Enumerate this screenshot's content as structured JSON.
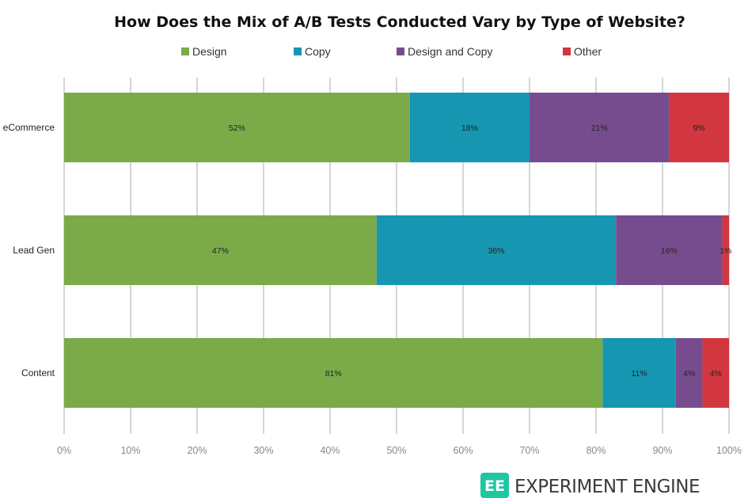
{
  "chart_data": {
    "type": "bar",
    "orientation": "horizontal",
    "stacked": "percent",
    "title": "How Does the Mix of A/B Tests Conducted Vary by Type of Website?",
    "categories": [
      "eCommerce",
      "Lead Gen",
      "Content"
    ],
    "series": [
      {
        "name": "Design",
        "color": "#7aab48",
        "values": [
          52,
          47,
          81
        ]
      },
      {
        "name": "Copy",
        "color": "#1696b1",
        "values": [
          18,
          36,
          11
        ]
      },
      {
        "name": "Design and Copy",
        "color": "#774c8e",
        "values": [
          21,
          16,
          4
        ]
      },
      {
        "name": "Other",
        "color": "#d2363f",
        "values": [
          9,
          1,
          4
        ]
      }
    ],
    "xlim": [
      0,
      100
    ],
    "xticks": [
      "0%",
      "10%",
      "20%",
      "30%",
      "40%",
      "50%",
      "60%",
      "70%",
      "80%",
      "90%",
      "100%"
    ],
    "grid": true,
    "legend_position": "top"
  },
  "logo": {
    "mark": "EE",
    "text": "EXPERIMENT ENGINE"
  }
}
